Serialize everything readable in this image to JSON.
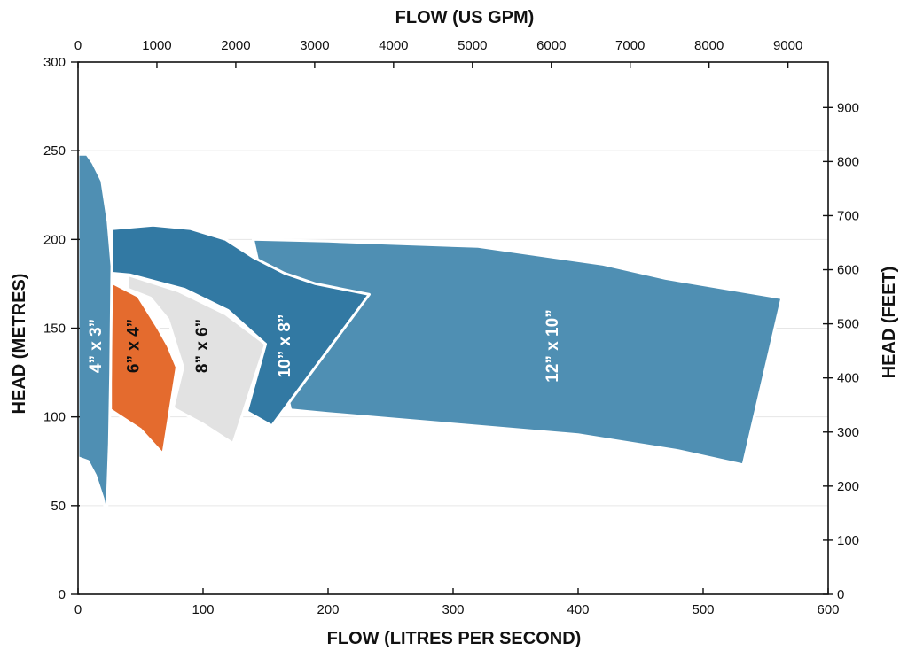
{
  "chart_data": {
    "type": "area",
    "title": "",
    "x_bottom": {
      "label": "FLOW (LITRES PER SECOND)",
      "range": [
        0,
        600
      ],
      "ticks": [
        0,
        100,
        200,
        300,
        400,
        500,
        600
      ]
    },
    "x_top": {
      "label": "FLOW (US GPM)",
      "range": [
        0,
        9510
      ],
      "ticks": [
        0,
        1000,
        2000,
        3000,
        4000,
        5000,
        6000,
        7000,
        8000,
        9000
      ]
    },
    "y_left": {
      "label": "HEAD (METRES)",
      "range": [
        0,
        300
      ],
      "ticks": [
        0,
        50,
        100,
        150,
        200,
        250,
        300
      ]
    },
    "y_right": {
      "label": "HEAD (FEET)",
      "range": [
        0,
        984
      ],
      "ticks": [
        0,
        100,
        200,
        300,
        400,
        500,
        600,
        700,
        800,
        900
      ]
    },
    "grid": true,
    "legend": "none",
    "series": [
      {
        "name": "12” x 10”",
        "color": "#4f8fb3",
        "label_color": "#ffffff",
        "label_at": [
          380,
          140
        ],
        "points": [
          [
            140,
            200
          ],
          [
            200,
            199
          ],
          [
            320,
            196
          ],
          [
            420,
            186
          ],
          [
            470,
            178
          ],
          [
            563,
            167
          ],
          [
            532,
            73
          ],
          [
            480,
            81
          ],
          [
            400,
            90
          ],
          [
            300,
            96
          ],
          [
            200,
            102
          ],
          [
            170,
            104
          ]
        ]
      },
      {
        "name": "10” x 8”",
        "color": "#3279a3",
        "label_color": "#ffffff",
        "label_at": [
          166,
          140
        ],
        "points": [
          [
            27,
            206
          ],
          [
            60,
            208
          ],
          [
            90,
            206
          ],
          [
            118,
            200
          ],
          [
            140,
            190
          ],
          [
            165,
            181
          ],
          [
            190,
            175
          ],
          [
            233,
            169
          ],
          [
            155,
            95
          ],
          [
            135,
            103
          ],
          [
            150,
            141
          ],
          [
            120,
            160
          ],
          [
            85,
            172
          ],
          [
            42,
            180
          ],
          [
            27,
            181
          ]
        ]
      },
      {
        "name": "8” x 6”",
        "color": "#e2e2e2",
        "label_color": "#111111",
        "label_at": [
          100,
          140
        ],
        "points": [
          [
            40,
            180
          ],
          [
            80,
            171
          ],
          [
            118,
            158
          ],
          [
            150,
            141
          ],
          [
            124,
            85
          ],
          [
            100,
            96
          ],
          [
            76,
            105
          ],
          [
            84,
            128
          ],
          [
            72,
            155
          ],
          [
            58,
            167
          ],
          [
            40,
            172
          ]
        ]
      },
      {
        "name": "6” x 4”",
        "color": "#e46b2e",
        "label_color": "#111111",
        "label_at": [
          45,
          140
        ],
        "points": [
          [
            26,
            176
          ],
          [
            48,
            168
          ],
          [
            64,
            150
          ],
          [
            72,
            140
          ],
          [
            79,
            128
          ],
          [
            68,
            79
          ],
          [
            50,
            93
          ],
          [
            26,
            104
          ]
        ]
      },
      {
        "name": "4” x 3”",
        "color": "#4f8fb3",
        "label_color": "#ffffff",
        "label_at": [
          15,
          140
        ],
        "points": [
          [
            0,
            248
          ],
          [
            7,
            248
          ],
          [
            12,
            243
          ],
          [
            19,
            233
          ],
          [
            24,
            210
          ],
          [
            27,
            185
          ],
          [
            26,
            125
          ],
          [
            25,
            85
          ],
          [
            23,
            44
          ],
          [
            20,
            54
          ],
          [
            14,
            67
          ],
          [
            8,
            75
          ],
          [
            0,
            77
          ]
        ]
      }
    ]
  }
}
